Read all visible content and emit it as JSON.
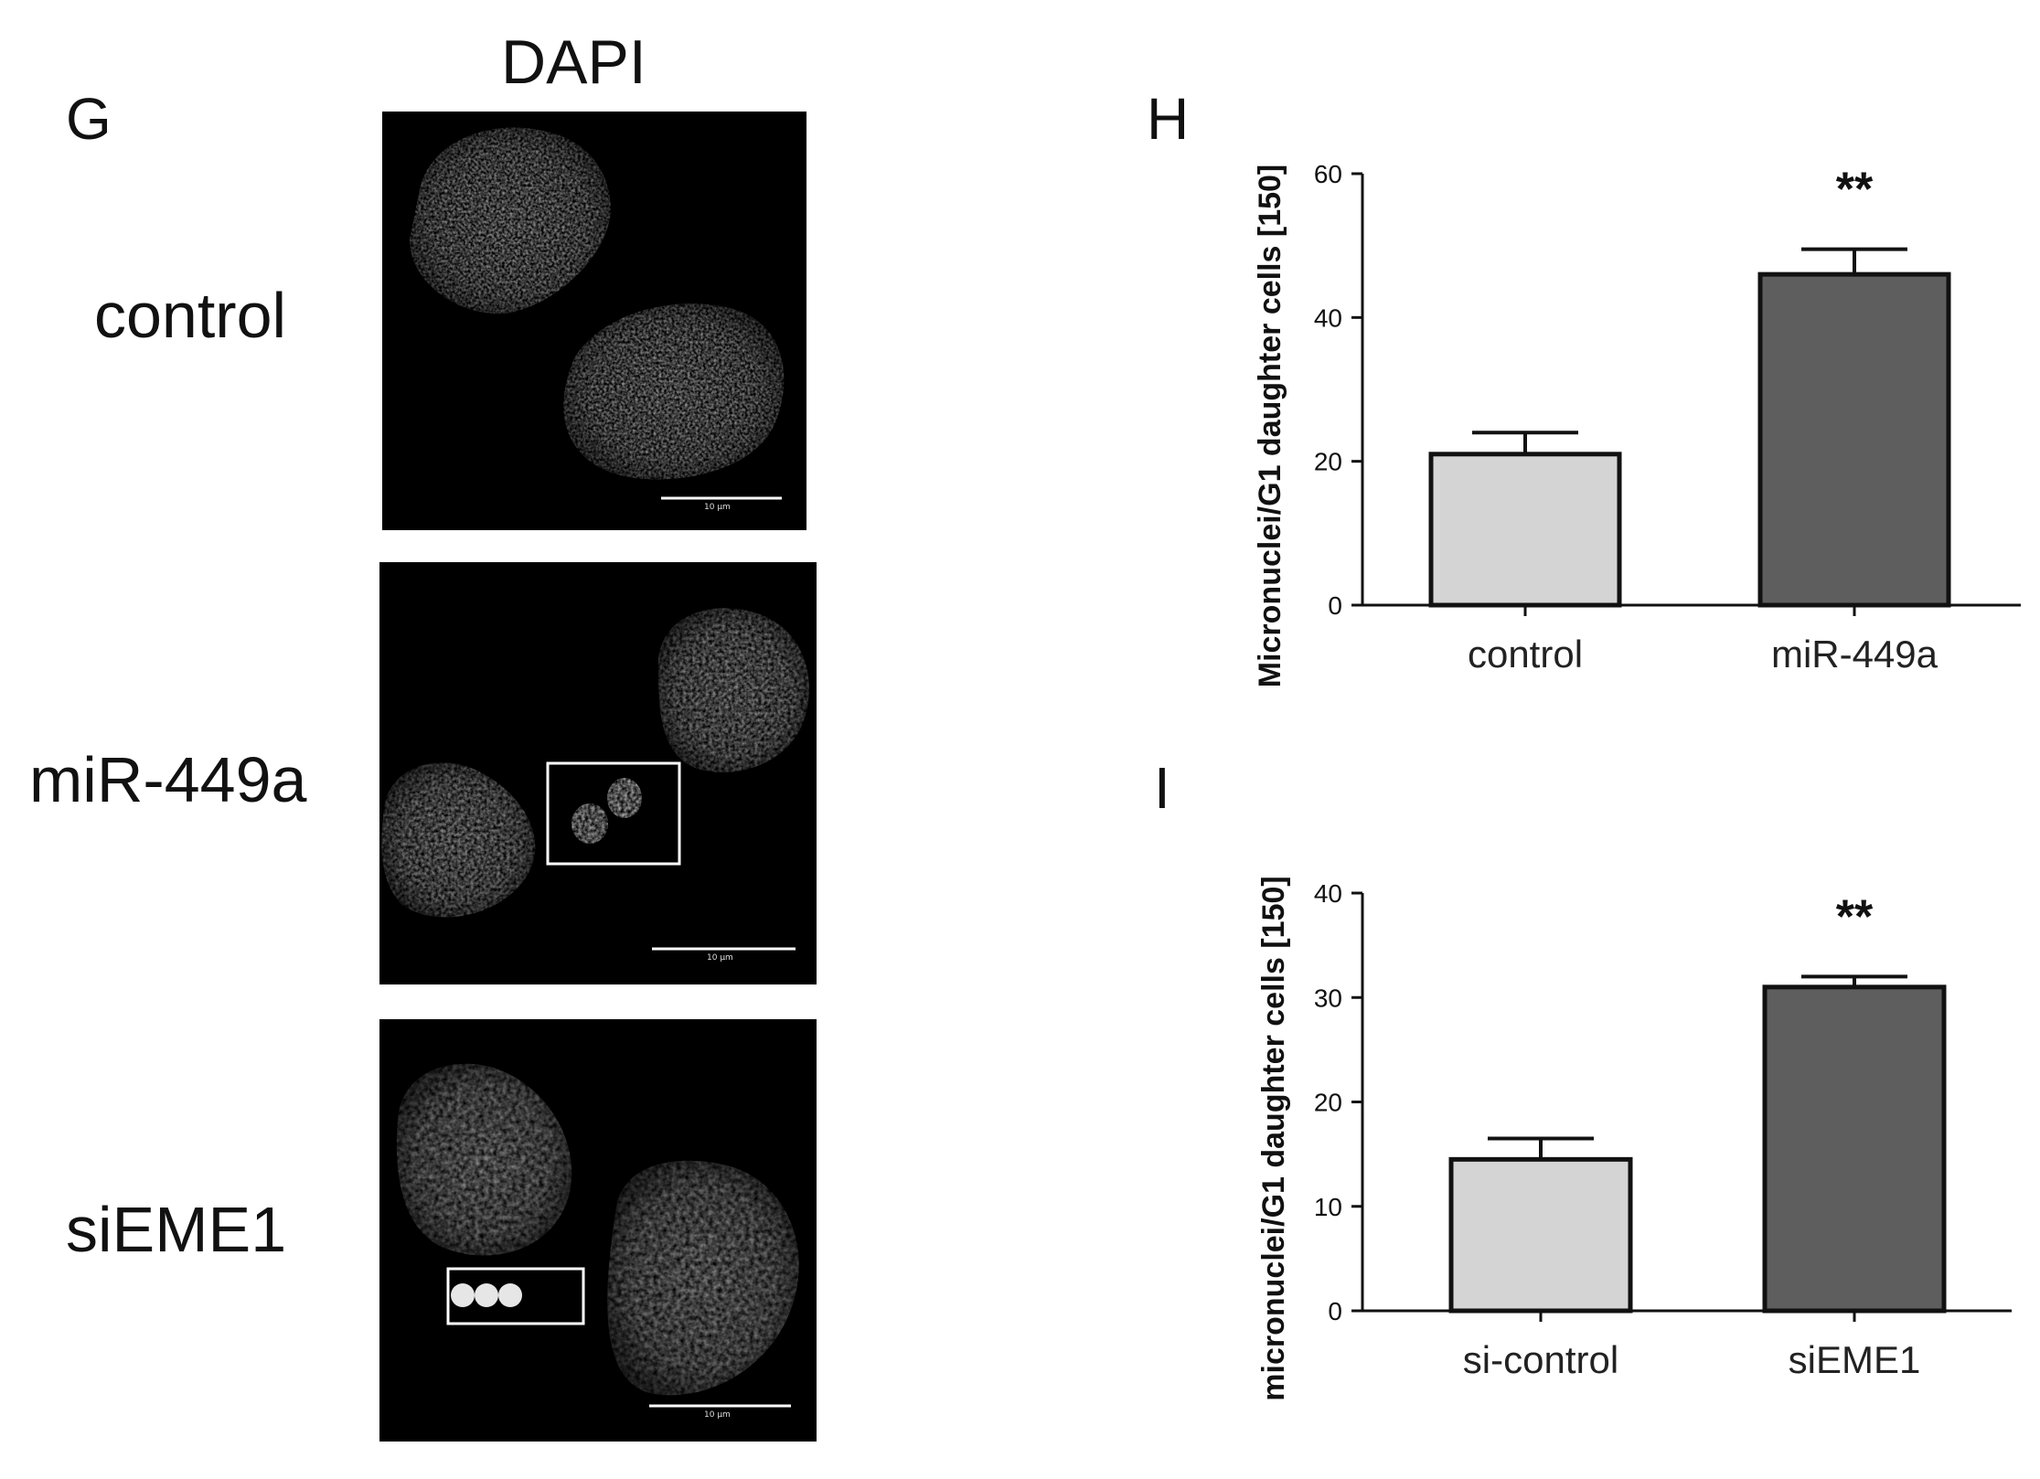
{
  "panel_g": {
    "letter": "G",
    "column_header": "DAPI",
    "rows": [
      {
        "label": "control",
        "scale_bar": "10 μm"
      },
      {
        "label": "miR-449a",
        "scale_bar": "10 μm"
      },
      {
        "label": "siEME1",
        "scale_bar": "10 μm"
      }
    ]
  },
  "chart_data": [
    {
      "panel": "H",
      "type": "bar",
      "categories": [
        "control",
        "miR-449a"
      ],
      "values": [
        21,
        46
      ],
      "errors": [
        3,
        3.5
      ],
      "colors": [
        "#d4d4d4",
        "#5e5e5e"
      ],
      "annotations": [
        "",
        "**"
      ],
      "ylabel": "Micronuclei/G1 daughter cells [150]",
      "ylim": [
        0,
        60
      ],
      "yticks": [
        0,
        20,
        40,
        60
      ],
      "ytick_labels": [
        "0",
        "20",
        "40",
        "60"
      ]
    },
    {
      "panel": "I",
      "type": "bar",
      "categories": [
        "si-control",
        "siEME1"
      ],
      "values": [
        14.5,
        31
      ],
      "errors": [
        2,
        1
      ],
      "colors": [
        "#d4d4d4",
        "#5e5e5e"
      ],
      "annotations": [
        "",
        "**"
      ],
      "ylabel": "micronuclei/G1 daughter cells [150]",
      "ylim": [
        0,
        40
      ],
      "yticks": [
        0,
        10,
        20,
        30,
        40
      ],
      "ytick_labels": [
        "0",
        "10",
        "20",
        "30",
        "40"
      ]
    }
  ]
}
